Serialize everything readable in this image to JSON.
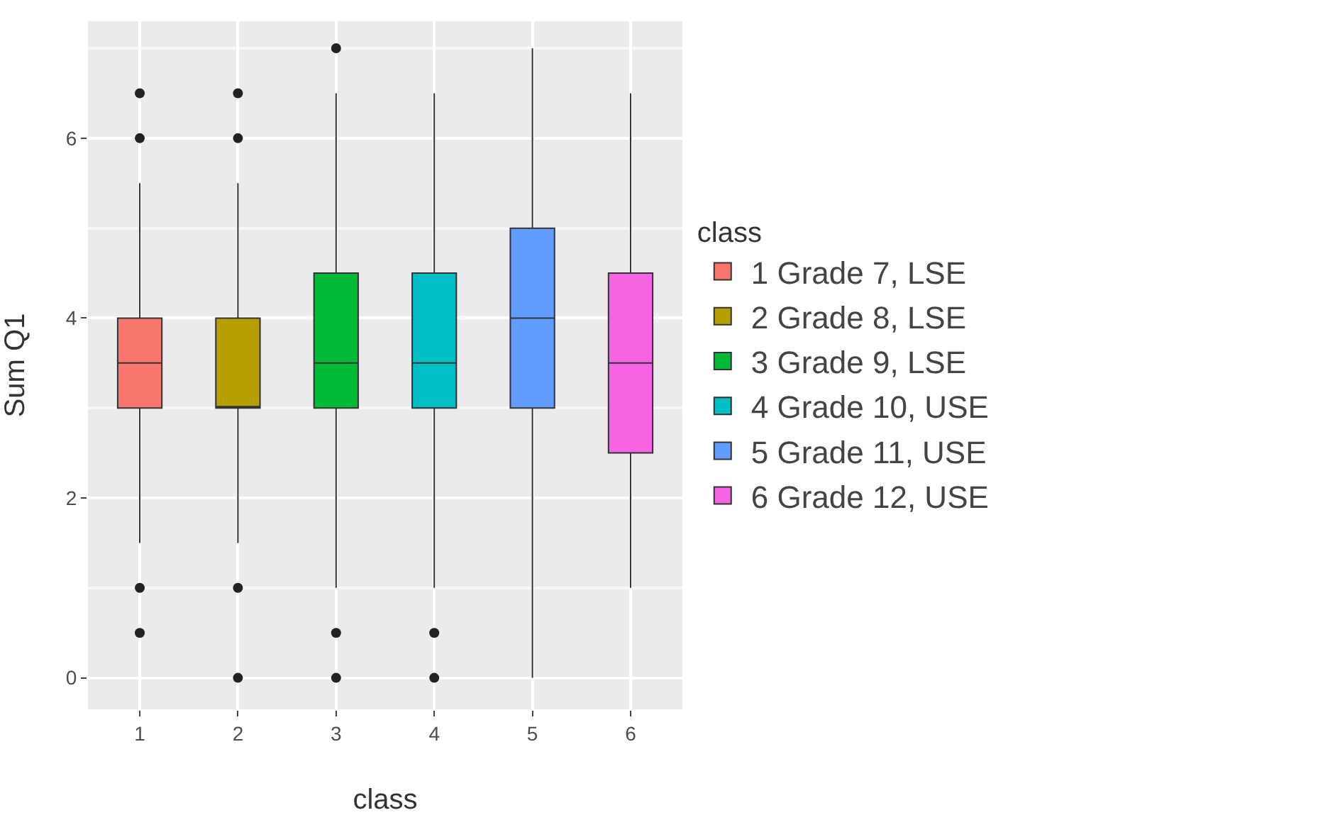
{
  "chart_data": {
    "type": "box",
    "xlabel": "class",
    "ylabel": "Sum Q1",
    "legend_title": "class",
    "categories": [
      "1",
      "2",
      "3",
      "4",
      "5",
      "6"
    ],
    "ylim": [
      -0.35,
      7.3
    ],
    "yticks": [
      0,
      2,
      4,
      6
    ],
    "grid": true,
    "legend": "right",
    "series": [
      {
        "name": "1 Grade 7, LSE",
        "color": "#f8766d",
        "boxes": [
          {
            "low": 1.5,
            "q1": 3,
            "median": 3.5,
            "q3": 4,
            "high": 5.5,
            "outliers": [
              0.5,
              1,
              6,
              6.5
            ]
          },
          null,
          null,
          null,
          null,
          null
        ]
      },
      {
        "name": "2 Grade 8, LSE",
        "color": "#b79f00",
        "boxes": [
          null,
          {
            "low": 1.5,
            "q1": 3,
            "median": 3,
            "q3": 4,
            "high": 5.5,
            "outliers": [
              0,
              1,
              6,
              6.5
            ]
          },
          null,
          null,
          null,
          null
        ]
      },
      {
        "name": "3 Grade 9, LSE",
        "color": "#00ba38",
        "boxes": [
          null,
          null,
          {
            "low": 1,
            "q1": 3,
            "median": 3.5,
            "q3": 4.5,
            "high": 6.5,
            "outliers": [
              0,
              0.5,
              7
            ]
          },
          null,
          null,
          null
        ]
      },
      {
        "name": "4 Grade 10, USE",
        "color": "#00bfc4",
        "boxes": [
          null,
          null,
          null,
          {
            "low": 1,
            "q1": 3,
            "median": 3.5,
            "q3": 4.5,
            "high": 6.5,
            "outliers": [
              0,
              0.5
            ]
          },
          null,
          null
        ]
      },
      {
        "name": "5 Grade 11, USE",
        "color": "#619cff",
        "boxes": [
          null,
          null,
          null,
          null,
          {
            "low": 0,
            "q1": 3,
            "median": 4,
            "q3": 5,
            "high": 7
          },
          null
        ]
      },
      {
        "name": "6 Grade 12, USE",
        "color": "#f564e3",
        "boxes": [
          null,
          null,
          null,
          null,
          null,
          {
            "low": 1,
            "q1": 2.5,
            "median": 3.5,
            "q3": 4.5,
            "high": 6.5
          }
        ]
      }
    ]
  }
}
